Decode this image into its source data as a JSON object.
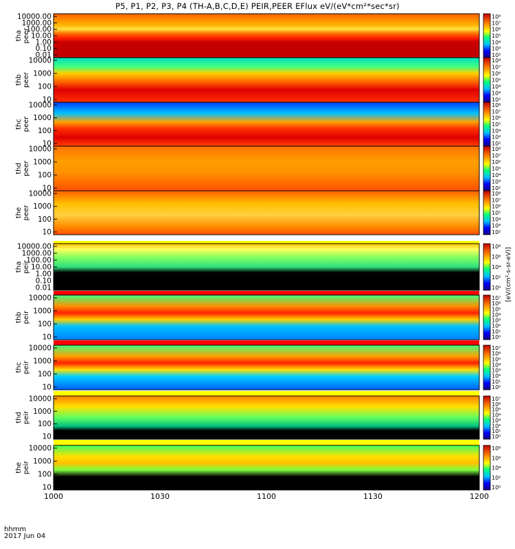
{
  "title": "P5, P1, P2, P3, P4 (TH-A,B,C,D,E) PEIR,PEER EFlux eV/(eV*cm²*sec*sr)",
  "footer": {
    "time_label": "hhmm",
    "date_label": "2017 Jun 04"
  },
  "colors": {
    "background": "#ffffff",
    "fill_bar": "#ff0000",
    "fill_bar_alt": "#ffff00",
    "no_data": "#000000"
  },
  "colorbar_unit": "[eV/(cm²-s-sr-eV)]",
  "chart_data": {
    "type": "heatmap",
    "x_axis": {
      "range": [
        "1000",
        "1200"
      ],
      "ticks": [
        "1000",
        "1030",
        "1100",
        "1130",
        "1200"
      ]
    },
    "panels": [
      {
        "probe": "tha",
        "product": "peer",
        "yticks": [
          "10000.00",
          "1000.00",
          "100.00",
          "10.00",
          "1.00",
          "0.10",
          "0.01"
        ],
        "colorbar": [
          "10⁸",
          "10⁷",
          "10⁶",
          "10⁵",
          "10⁴",
          "10³",
          "10²"
        ]
      },
      {
        "probe": "thb",
        "product": "peer",
        "yticks": [
          "10000",
          "1000",
          "100",
          "10"
        ],
        "colorbar": [
          "10⁸",
          "10⁷",
          "10⁶",
          "10⁵",
          "10⁴",
          "10³",
          "10²"
        ]
      },
      {
        "probe": "thc",
        "product": "peer",
        "yticks": [
          "10000",
          "1000",
          "100",
          "10"
        ],
        "colorbar": [
          "10⁸",
          "10⁷",
          "10⁶",
          "10⁵",
          "10⁴",
          "10³",
          "10²"
        ]
      },
      {
        "probe": "thd",
        "product": "peer",
        "yticks": [
          "10000",
          "1000",
          "100",
          "10"
        ],
        "colorbar": [
          "10⁸",
          "10⁷",
          "10⁶",
          "10⁵",
          "10⁴",
          "10³",
          "10²"
        ]
      },
      {
        "probe": "the",
        "product": "peer",
        "yticks": [
          "10000",
          "1000",
          "100",
          "10"
        ],
        "colorbar": [
          "10⁸",
          "10⁷",
          "10⁶",
          "10⁵",
          "10⁴",
          "10³",
          "10²"
        ]
      },
      {
        "probe": "tha",
        "product": "peir",
        "yticks": [
          "10000.00",
          "1000.00",
          "100.00",
          "10.00",
          "1.00",
          "0.10",
          "0.01"
        ],
        "colorbar": [
          "10⁸",
          "10⁶",
          "10⁴",
          "10²",
          "10⁰"
        ]
      },
      {
        "probe": "thb",
        "product": "peir",
        "yticks": [
          "10000",
          "1000",
          "100",
          "10"
        ],
        "colorbar": [
          "10⁷",
          "10⁶",
          "10⁵",
          "10⁴",
          "10³",
          "10²",
          "10¹",
          "10⁰"
        ]
      },
      {
        "probe": "thc",
        "product": "peir",
        "yticks": [
          "10000",
          "1000",
          "100",
          "10"
        ],
        "colorbar": [
          "10⁷",
          "10⁶",
          "10⁵",
          "10⁴",
          "10³",
          "10²",
          "10¹",
          "10⁰"
        ]
      },
      {
        "probe": "thd",
        "product": "peir",
        "yticks": [
          "10000",
          "1000",
          "100",
          "10"
        ],
        "colorbar": [
          "10⁷",
          "10⁶",
          "10⁵",
          "10⁴",
          "10³",
          "10²",
          "10¹",
          "10⁰"
        ]
      },
      {
        "probe": "the",
        "product": "peir",
        "yticks": [
          "10000",
          "1000",
          "100",
          "10"
        ],
        "colorbar": [
          "10⁸",
          "10⁶",
          "10⁴",
          "10²",
          "10⁰"
        ]
      }
    ]
  }
}
